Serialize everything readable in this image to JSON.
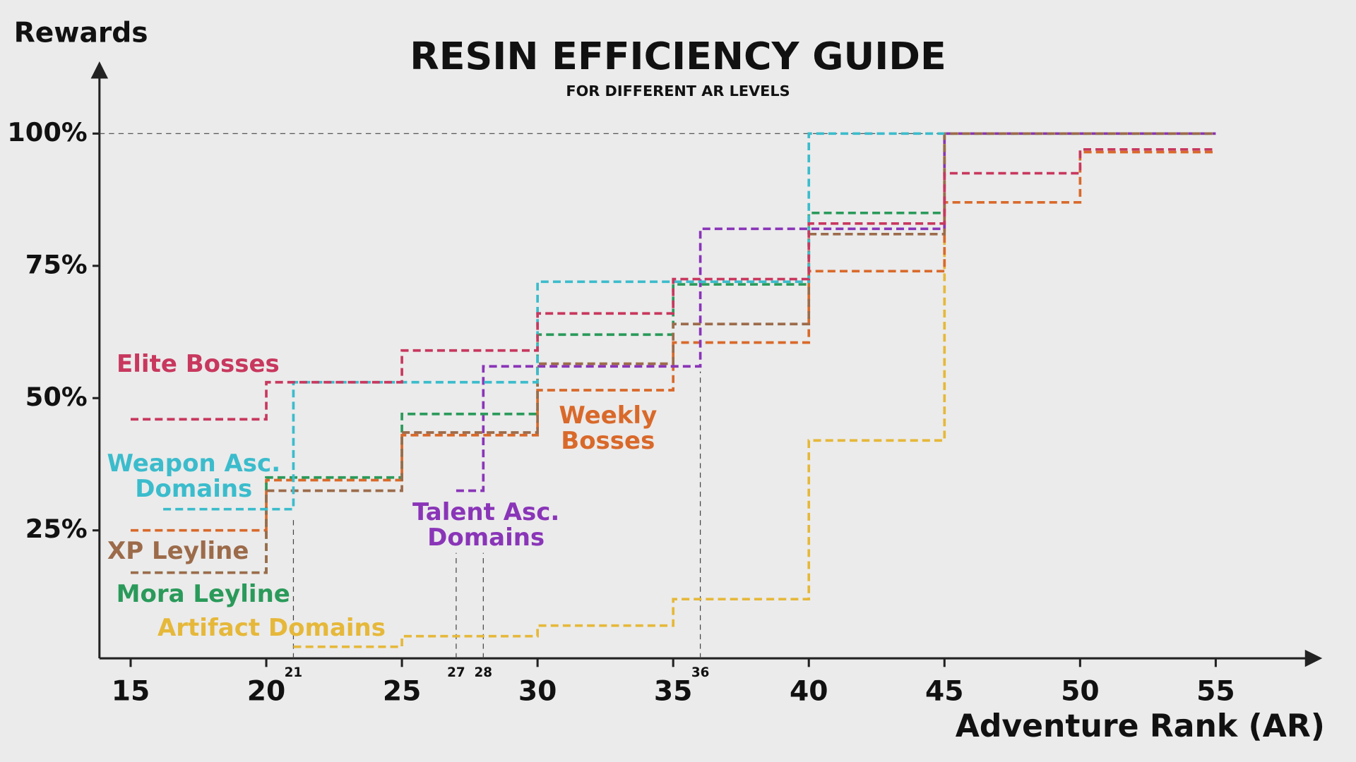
{
  "chart_data": {
    "type": "step",
    "title": "RESIN EFFICIENCY GUIDE",
    "subtitle": "FOR DIFFERENT AR LEVELS",
    "y_label": "Rewards",
    "x_label": "Adventure Rank (AR)",
    "xlim": [
      13.85,
      58.8
    ],
    "ylim": [
      0,
      113
    ],
    "xticks": [
      15,
      20,
      25,
      30,
      35,
      40,
      45,
      50,
      55
    ],
    "minor_xticks": [
      21,
      27,
      28,
      36
    ],
    "yticks": [
      {
        "value": 25,
        "label": "25%"
      },
      {
        "value": 50,
        "label": "50%"
      },
      {
        "value": 75,
        "label": "75%"
      },
      {
        "value": 100,
        "label": "100%"
      }
    ],
    "series": [
      {
        "name": "Elite Bosses",
        "color": "#c8385e",
        "x": [
          15,
          20,
          25,
          30,
          35,
          40,
          45,
          50,
          55
        ],
        "values": [
          46,
          53,
          59,
          66,
          72.5,
          83,
          92.5,
          97,
          97
        ]
      },
      {
        "name": "Weapon Asc. Domains",
        "color": "#3bbccc",
        "x": [
          16.2,
          21,
          30,
          40,
          45
        ],
        "values": [
          29,
          53,
          72,
          100,
          100
        ]
      },
      {
        "name": "XP Leyline",
        "color": "#9c6b4a",
        "x": [
          15,
          20,
          25,
          30,
          35,
          40,
          45,
          55
        ],
        "values": [
          17,
          32.5,
          43.5,
          56.5,
          64,
          81,
          100,
          100
        ]
      },
      {
        "name": "Mora Leyline",
        "color": "#2a9a5a",
        "x": [
          15,
          20,
          25,
          30,
          35,
          40,
          45,
          55
        ],
        "values": [
          17,
          35,
          47,
          62,
          71.5,
          85,
          100,
          100
        ]
      },
      {
        "name": "Talent Asc. Domains",
        "color": "#8a35b8",
        "x": [
          27,
          28,
          36,
          45,
          55
        ],
        "values": [
          32.5,
          56,
          82,
          100,
          100
        ]
      },
      {
        "name": "Weekly Bosses",
        "color": "#d9692a",
        "x": [
          15,
          20,
          25,
          30,
          35,
          40,
          45,
          50,
          55
        ],
        "values": [
          25,
          34.5,
          43,
          51.5,
          60.5,
          74,
          87,
          96.5,
          96.5
        ]
      },
      {
        "name": "Artifact Domains",
        "color": "#e6b83a",
        "x": [
          21,
          25,
          30,
          35,
          40,
          45,
          55
        ],
        "values": [
          3,
          5,
          7,
          12,
          42,
          100,
          100
        ]
      }
    ]
  }
}
